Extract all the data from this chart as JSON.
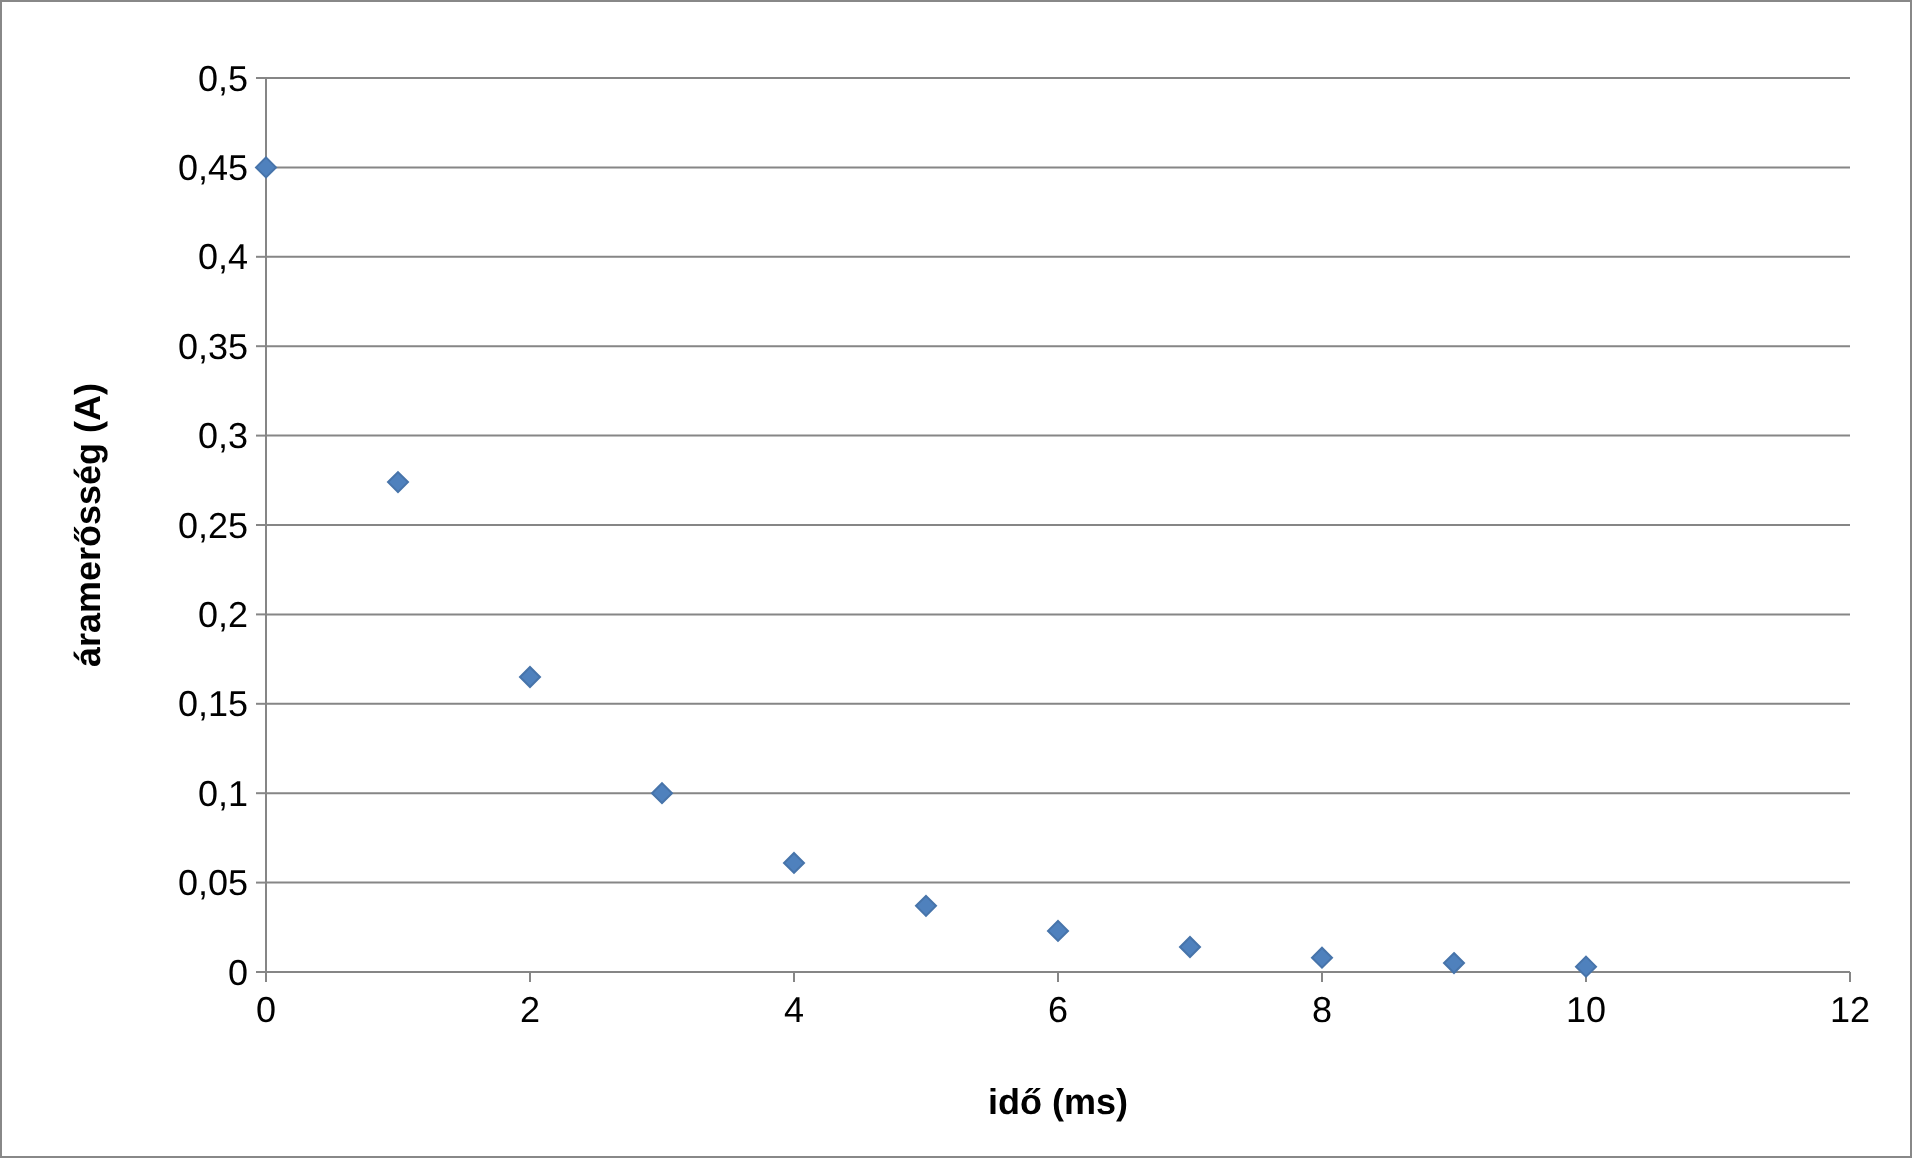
{
  "chart_data": {
    "type": "scatter",
    "xlabel": "idő (ms)",
    "ylabel": "áramerősség (A)",
    "x": [
      0,
      1,
      2,
      3,
      4,
      5,
      6,
      7,
      8,
      9,
      10
    ],
    "series": [
      {
        "color": "#4f81bd",
        "values": [
          0.45,
          0.274,
          0.165,
          0.1,
          0.061,
          0.037,
          0.023,
          0.014,
          0.008,
          0.005,
          0.003
        ]
      }
    ],
    "xlim": [
      0,
      12
    ],
    "xticks": [
      0,
      2,
      4,
      6,
      8,
      10,
      12
    ],
    "ylim": [
      0,
      0.5
    ],
    "yticks": [
      {
        "value": 0,
        "label": "0"
      },
      {
        "value": 0.05,
        "label": "0,05"
      },
      {
        "value": 0.1,
        "label": "0,1"
      },
      {
        "value": 0.15,
        "label": "0,15"
      },
      {
        "value": 0.2,
        "label": "0,2"
      },
      {
        "value": 0.25,
        "label": "0,25"
      },
      {
        "value": 0.3,
        "label": "0,3"
      },
      {
        "value": 0.35,
        "label": "0,35"
      },
      {
        "value": 0.4,
        "label": "0,4"
      },
      {
        "value": 0.45,
        "label": "0,45"
      },
      {
        "value": 0.5,
        "label": "0,5"
      }
    ],
    "grid": "y",
    "marker": "diamond"
  }
}
